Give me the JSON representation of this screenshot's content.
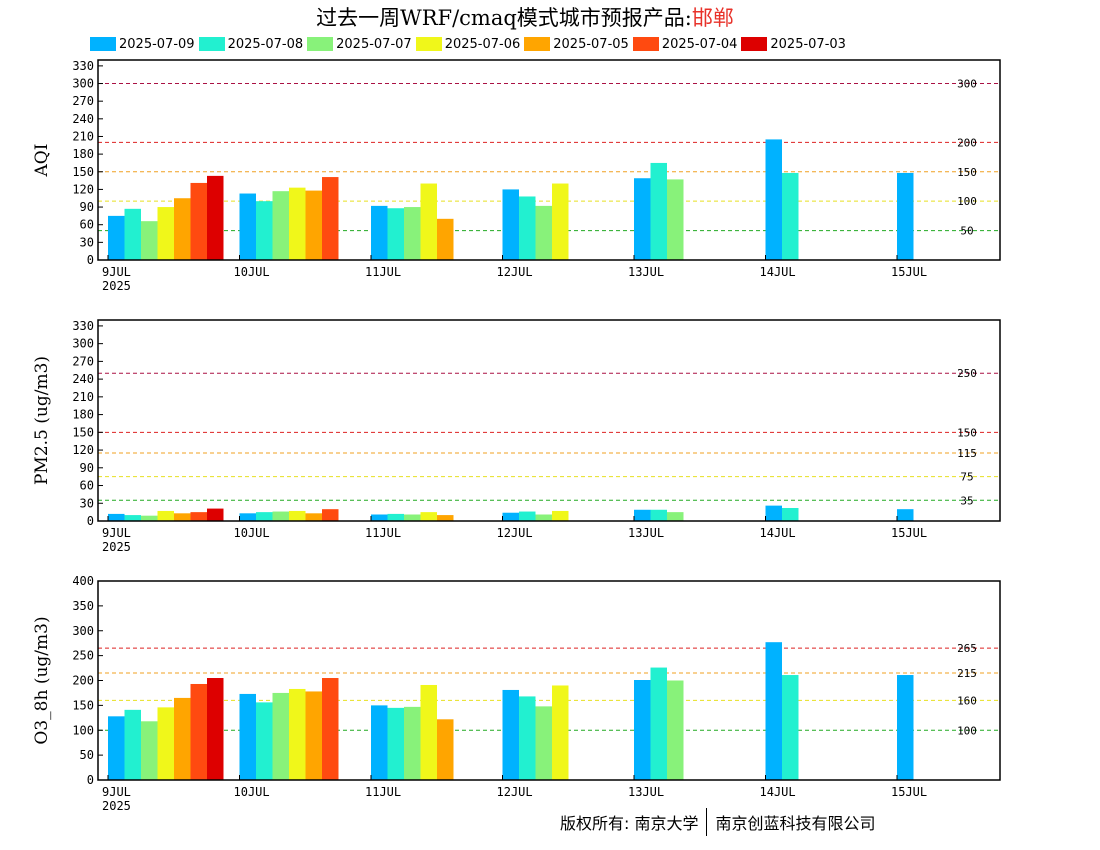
{
  "header": {
    "title_prefix": "过去一周WRF/cmaq模式城市预报产品:",
    "city": "邯郸"
  },
  "legend": [
    {
      "label": "2025-07-09",
      "color": "#00b2ff"
    },
    {
      "label": "2025-07-08",
      "color": "#22f0d0"
    },
    {
      "label": "2025-07-07",
      "color": "#88f27a"
    },
    {
      "label": "2025-07-06",
      "color": "#f0f71a"
    },
    {
      "label": "2025-07-05",
      "color": "#ffa500"
    },
    {
      "label": "2025-07-04",
      "color": "#ff4a10"
    },
    {
      "label": "2025-07-03",
      "color": "#dd0000"
    }
  ],
  "footer": {
    "copyright_left": "版权所有: 南京大学",
    "copyright_right": "南京创蓝科技有限公司"
  },
  "chart_data": [
    {
      "type": "bar",
      "ylabel": "AQI",
      "ylim": [
        0,
        340
      ],
      "yticks": [
        0,
        30,
        60,
        90,
        120,
        150,
        180,
        210,
        240,
        270,
        300,
        330
      ],
      "categories": [
        "9JUL",
        "10JUL",
        "11JUL",
        "12JUL",
        "13JUL",
        "14JUL",
        "15JUL"
      ],
      "first_category_year": "2025",
      "thresholds": [
        {
          "value": 50,
          "label": "50",
          "color": "#22aa22"
        },
        {
          "value": 100,
          "label": "100",
          "color": "#e8e020"
        },
        {
          "value": 150,
          "label": "150",
          "color": "#f0a020"
        },
        {
          "value": 200,
          "label": "200",
          "color": "#dd2222"
        },
        {
          "value": 300,
          "label": "300",
          "color": "#aa1144"
        }
      ],
      "series": [
        {
          "name": "2025-07-09",
          "values": [
            75,
            113,
            92,
            120,
            139,
            205,
            148
          ]
        },
        {
          "name": "2025-07-08",
          "values": [
            87,
            100,
            88,
            108,
            165,
            148,
            null
          ]
        },
        {
          "name": "2025-07-07",
          "values": [
            66,
            117,
            90,
            92,
            137,
            null,
            null
          ]
        },
        {
          "name": "2025-07-06",
          "values": [
            90,
            123,
            130,
            130,
            null,
            null,
            null
          ]
        },
        {
          "name": "2025-07-05",
          "values": [
            105,
            118,
            70,
            null,
            null,
            null,
            null
          ]
        },
        {
          "name": "2025-07-04",
          "values": [
            131,
            141,
            null,
            null,
            null,
            null,
            null
          ]
        },
        {
          "name": "2025-07-03",
          "values": [
            143,
            null,
            null,
            null,
            null,
            null,
            null
          ]
        }
      ]
    },
    {
      "type": "bar",
      "ylabel": "PM2.5 (ug/m3)",
      "ylim": [
        0,
        340
      ],
      "yticks": [
        0,
        30,
        60,
        90,
        120,
        150,
        180,
        210,
        240,
        270,
        300,
        330
      ],
      "categories": [
        "9JUL",
        "10JUL",
        "11JUL",
        "12JUL",
        "13JUL",
        "14JUL",
        "15JUL"
      ],
      "first_category_year": "2025",
      "thresholds": [
        {
          "value": 35,
          "label": "35",
          "color": "#22aa22"
        },
        {
          "value": 75,
          "label": "75",
          "color": "#e8e020"
        },
        {
          "value": 115,
          "label": "115",
          "color": "#f0a020"
        },
        {
          "value": 150,
          "label": "150",
          "color": "#dd2222"
        },
        {
          "value": 250,
          "label": "250",
          "color": "#aa1144"
        }
      ],
      "series": [
        {
          "name": "2025-07-09",
          "values": [
            12,
            13,
            11,
            14,
            19,
            26,
            20
          ]
        },
        {
          "name": "2025-07-08",
          "values": [
            10,
            15,
            12,
            16,
            19,
            22,
            null
          ]
        },
        {
          "name": "2025-07-07",
          "values": [
            9,
            16,
            11,
            11,
            15,
            null,
            null
          ]
        },
        {
          "name": "2025-07-06",
          "values": [
            17,
            17,
            15,
            17,
            null,
            null,
            null
          ]
        },
        {
          "name": "2025-07-05",
          "values": [
            13,
            13,
            10,
            null,
            null,
            null,
            null
          ]
        },
        {
          "name": "2025-07-04",
          "values": [
            15,
            20,
            null,
            null,
            null,
            null,
            null
          ]
        },
        {
          "name": "2025-07-03",
          "values": [
            21,
            null,
            null,
            null,
            null,
            null,
            null
          ]
        }
      ]
    },
    {
      "type": "bar",
      "ylabel": "O3_8h (ug/m3)",
      "ylim": [
        0,
        400
      ],
      "yticks": [
        0,
        50,
        100,
        150,
        200,
        250,
        300,
        350,
        400
      ],
      "categories": [
        "9JUL",
        "10JUL",
        "11JUL",
        "12JUL",
        "13JUL",
        "14JUL",
        "15JUL"
      ],
      "first_category_year": "2025",
      "thresholds": [
        {
          "value": 100,
          "label": "100",
          "color": "#22aa22"
        },
        {
          "value": 160,
          "label": "160",
          "color": "#e8e020"
        },
        {
          "value": 215,
          "label": "215",
          "color": "#f0a020"
        },
        {
          "value": 265,
          "label": "265",
          "color": "#dd2222"
        }
      ],
      "series": [
        {
          "name": "2025-07-09",
          "values": [
            128,
            173,
            150,
            181,
            201,
            277,
            211
          ]
        },
        {
          "name": "2025-07-08",
          "values": [
            141,
            156,
            145,
            168,
            226,
            211,
            null
          ]
        },
        {
          "name": "2025-07-07",
          "values": [
            118,
            175,
            147,
            148,
            200,
            null,
            null
          ]
        },
        {
          "name": "2025-07-06",
          "values": [
            146,
            183,
            191,
            190,
            null,
            null,
            null
          ]
        },
        {
          "name": "2025-07-05",
          "values": [
            165,
            178,
            122,
            null,
            null,
            null,
            null
          ]
        },
        {
          "name": "2025-07-04",
          "values": [
            193,
            205,
            null,
            null,
            null,
            null,
            null
          ]
        },
        {
          "name": "2025-07-03",
          "values": [
            205,
            null,
            null,
            null,
            null,
            null,
            null
          ]
        }
      ]
    }
  ]
}
